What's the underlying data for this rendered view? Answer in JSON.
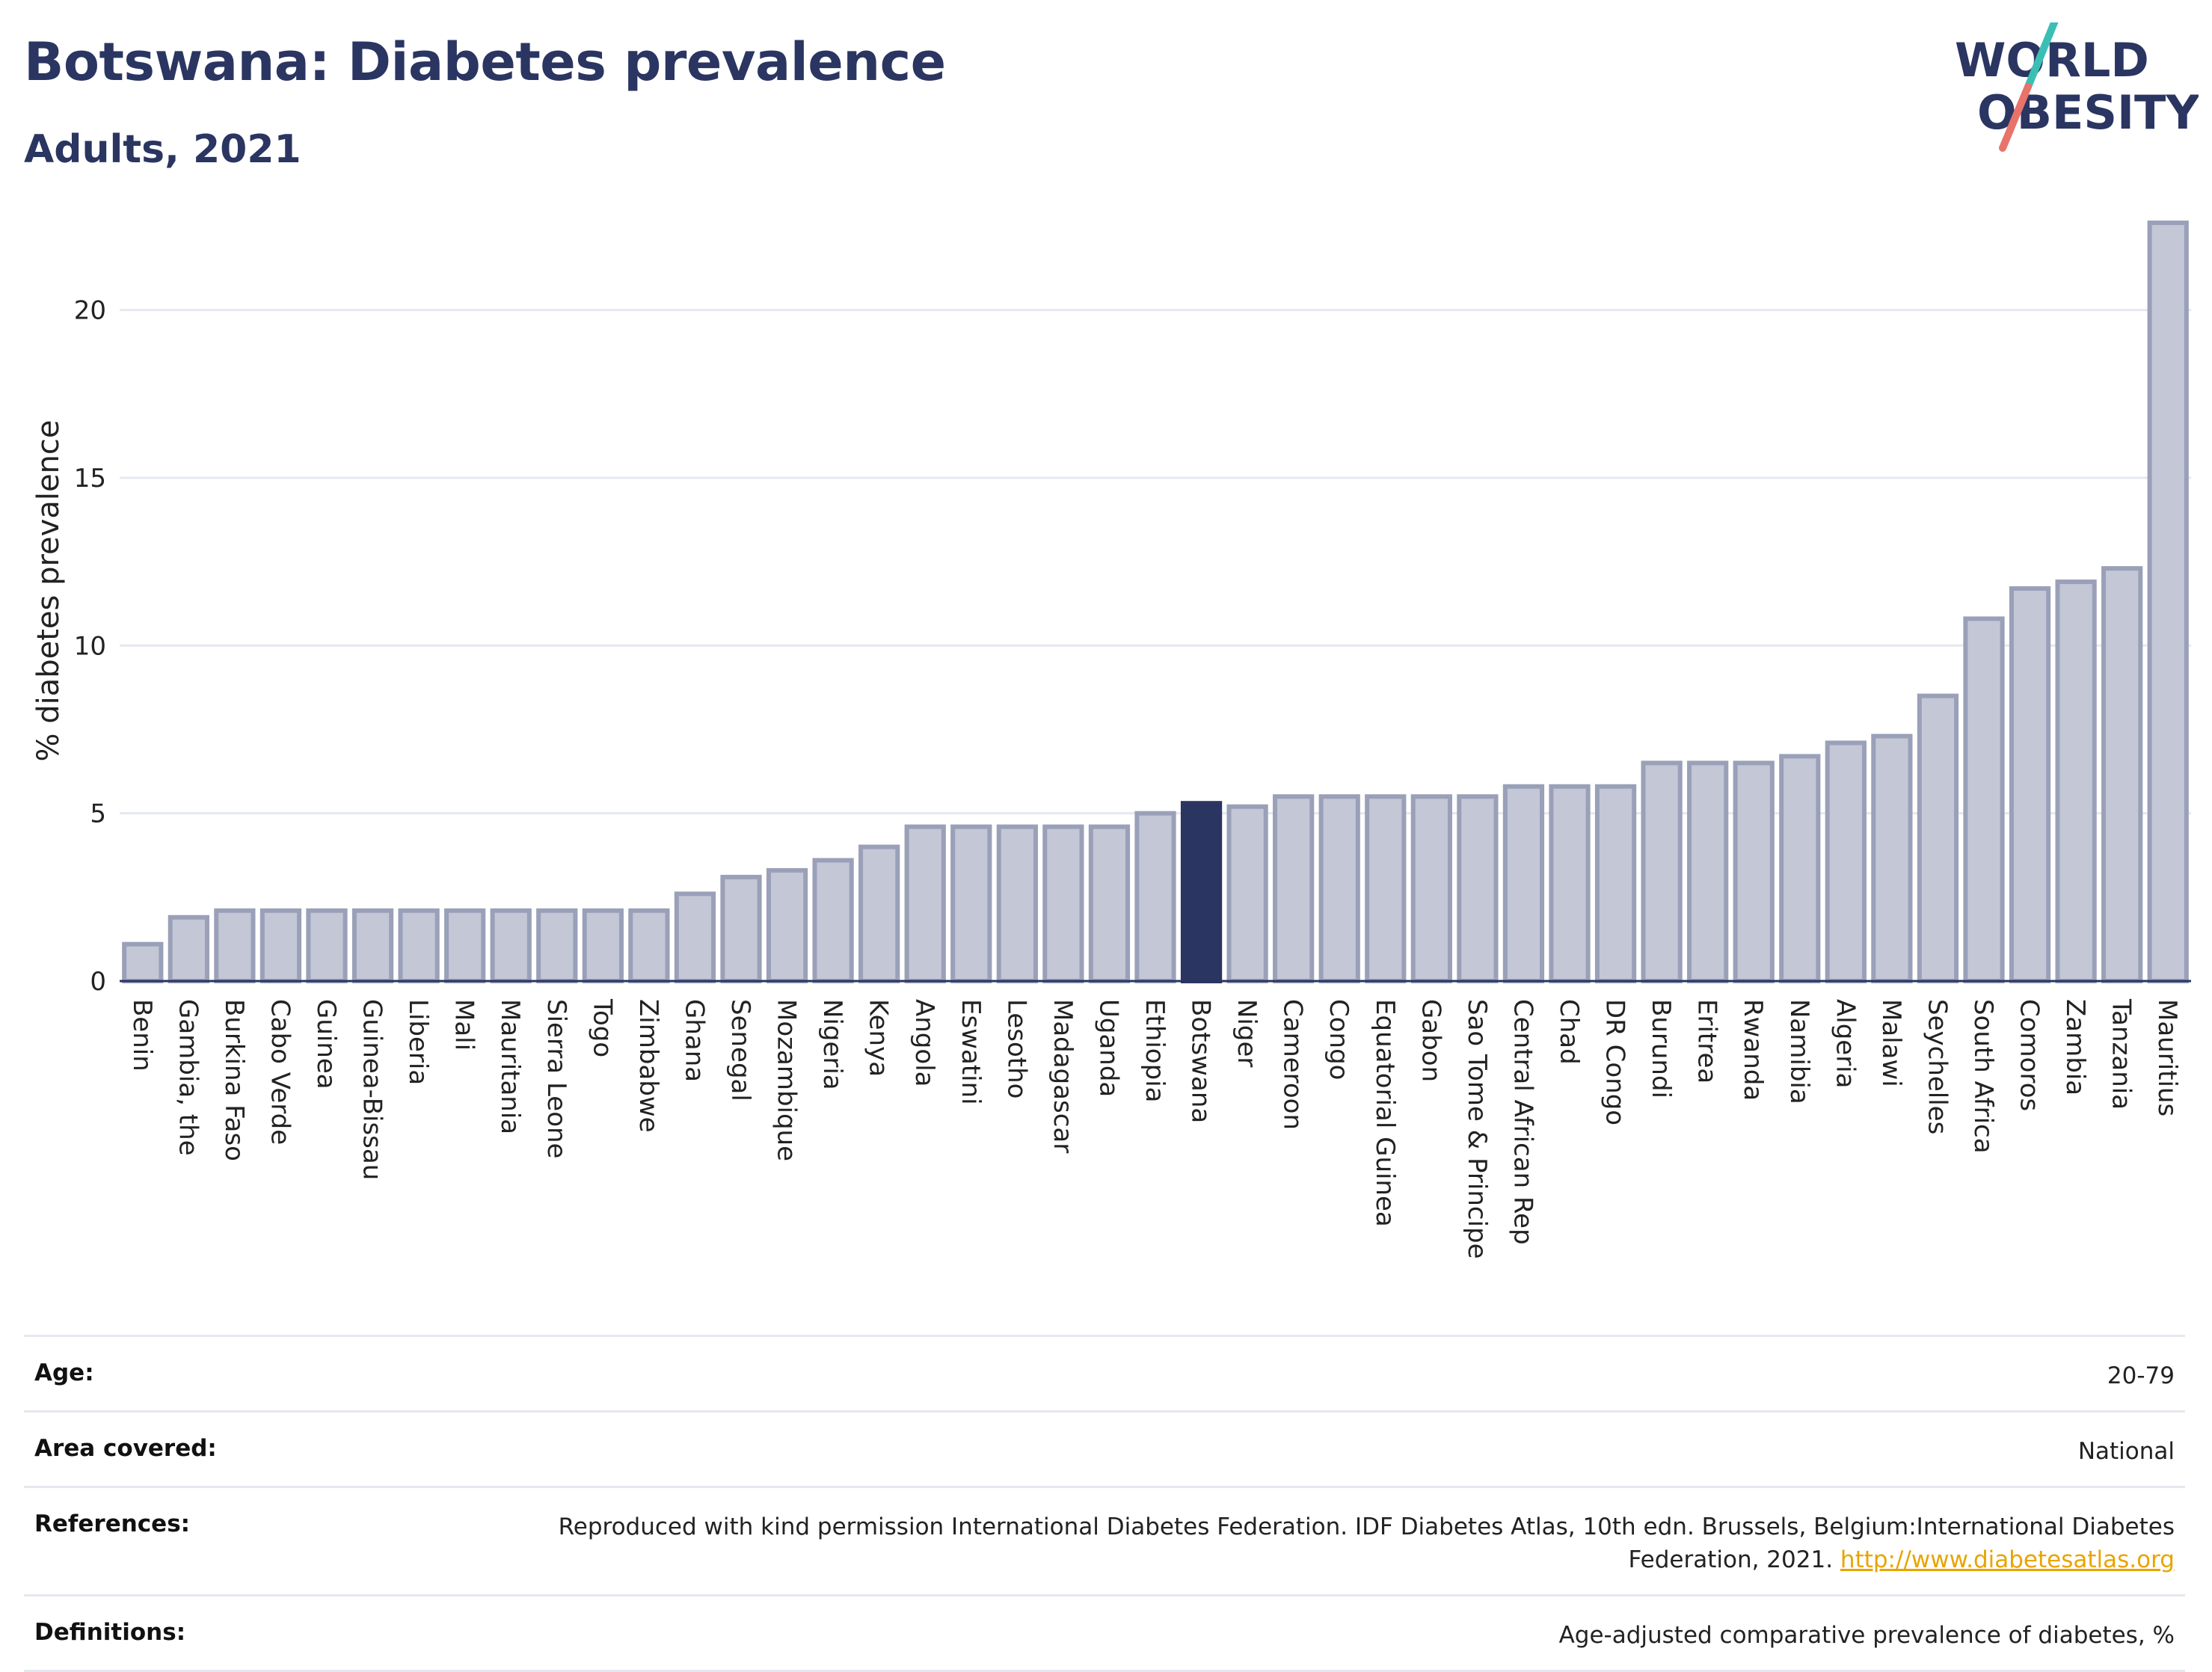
{
  "header": {
    "title": "Botswana: Diabetes prevalence",
    "subtitle": "Adults, 2021"
  },
  "logo": {
    "line1": "WORLD",
    "line2": "OBESITY",
    "text_color": "#2a3561",
    "slash_top_color": "#3bbfb5",
    "slash_bottom_color": "#e8736a"
  },
  "colors": {
    "bar_fill": "#c3c7d6",
    "bar_stroke": "#9aa0b8",
    "highlight_fill": "#2a3561",
    "grid": "#e6e8f0",
    "axis": "#2a3561"
  },
  "chart_data": {
    "type": "bar",
    "ylabel": "% diabetes prevalence",
    "ylim": [
      0,
      23
    ],
    "yticks": [
      0,
      5,
      10,
      15,
      20
    ],
    "grid": true,
    "highlight": "Botswana",
    "categories": [
      "Benin",
      "Gambia, the",
      "Burkina Faso",
      "Cabo Verde",
      "Guinea",
      "Guinea-Bissau",
      "Liberia",
      "Mali",
      "Mauritania",
      "Sierra Leone",
      "Togo",
      "Zimbabwe",
      "Ghana",
      "Senegal",
      "Mozambique",
      "Nigeria",
      "Kenya",
      "Angola",
      "Eswatini",
      "Lesotho",
      "Madagascar",
      "Uganda",
      "Ethiopia",
      "Botswana",
      "Niger",
      "Cameroon",
      "Congo",
      "Equatorial Guinea",
      "Gabon",
      "Sao Tome & Principe",
      "Central African Rep",
      "Chad",
      "DR Congo",
      "Burundi",
      "Eritrea",
      "Rwanda",
      "Namibia",
      "Algeria",
      "Malawi",
      "Seychelles",
      "South Africa",
      "Comoros",
      "Zambia",
      "Tanzania",
      "Mauritius"
    ],
    "values": [
      1.1,
      1.9,
      2.1,
      2.1,
      2.1,
      2.1,
      2.1,
      2.1,
      2.1,
      2.1,
      2.1,
      2.1,
      2.6,
      3.1,
      3.3,
      3.6,
      4.0,
      4.6,
      4.6,
      4.6,
      4.6,
      4.6,
      5.0,
      5.3,
      5.2,
      5.5,
      5.5,
      5.5,
      5.5,
      5.5,
      5.8,
      5.8,
      5.8,
      6.5,
      6.5,
      6.5,
      6.7,
      7.1,
      7.3,
      8.5,
      10.8,
      11.7,
      11.9,
      12.3,
      22.6
    ]
  },
  "meta": [
    {
      "key": "Age:",
      "value": "20-79"
    },
    {
      "key": "Area covered:",
      "value": "National"
    },
    {
      "key": "References:",
      "value": "Reproduced with kind permission International Diabetes Federation.  IDF Diabetes Atlas, 10th edn. Brussels, Belgium:International Diabetes Federation, 2021.",
      "link": "http://www.diabetesatlas.org"
    },
    {
      "key": "Definitions:",
      "value": "Age-adjusted comparative prevalence of diabetes, %"
    }
  ]
}
